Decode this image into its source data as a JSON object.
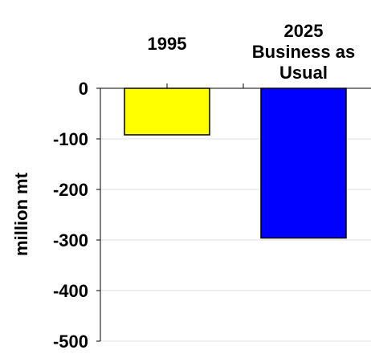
{
  "chart_data": {
    "type": "bar",
    "title": "",
    "xlabel": "",
    "ylabel": "million mt",
    "categories": [
      "1995",
      "2025 Business as Usual"
    ],
    "category_label_lines": [
      [
        "1995"
      ],
      [
        "2025",
        "Business as",
        "Usual"
      ]
    ],
    "values": [
      -92,
      -296
    ],
    "bar_colors": [
      "#ffff00",
      "#0000ff"
    ],
    "ylim": [
      -500,
      0
    ],
    "yticks": [
      0,
      -100,
      -200,
      -300,
      -400,
      -500
    ],
    "ytick_labels": [
      "0",
      "-100",
      "-200",
      "-300",
      "-400",
      "-500"
    ],
    "grid": true,
    "legend": "none"
  }
}
